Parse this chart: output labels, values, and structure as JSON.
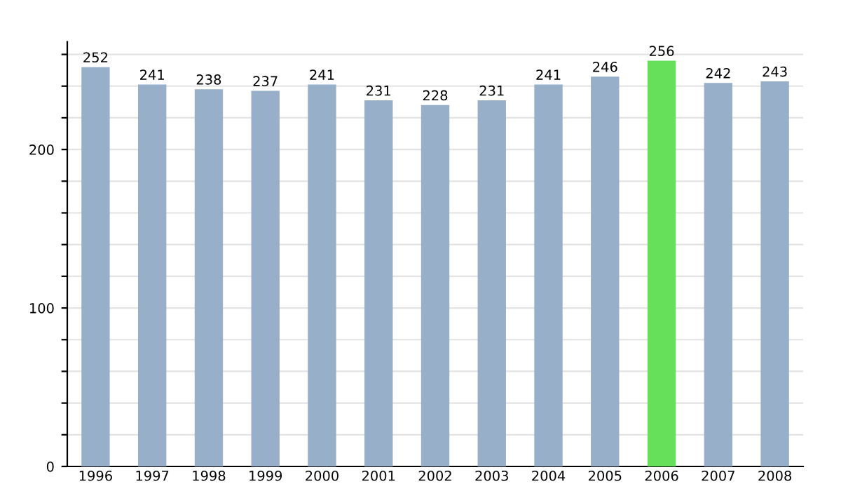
{
  "chart_data": {
    "type": "bar",
    "categories": [
      "1996",
      "1997",
      "1998",
      "1999",
      "2000",
      "2001",
      "2002",
      "2003",
      "2004",
      "2005",
      "2006",
      "2007",
      "2008"
    ],
    "values": [
      252,
      241,
      238,
      237,
      241,
      231,
      228,
      231,
      241,
      246,
      256,
      242,
      243
    ],
    "colors": [
      "#97afc9",
      "#97afc9",
      "#97afc9",
      "#97afc9",
      "#97afc9",
      "#97afc9",
      "#97afc9",
      "#97afc9",
      "#97afc9",
      "#97afc9",
      "#66e05a",
      "#97afc9",
      "#97afc9"
    ],
    "ylim": [
      0,
      268
    ],
    "yticks": [
      0,
      {
        "value": 20,
        "label": null
      },
      {
        "value": 40,
        "label": null
      },
      {
        "value": 60,
        "label": null
      },
      {
        "value": 80,
        "label": null
      },
      100,
      {
        "value": 120,
        "label": null
      },
      {
        "value": 140,
        "label": null
      },
      {
        "value": 160,
        "label": null
      },
      {
        "value": 180,
        "label": null
      },
      200,
      {
        "value": 220,
        "label": null
      },
      {
        "value": 240,
        "label": null
      },
      {
        "value": 260,
        "label": null
      }
    ],
    "grid": "y",
    "data_labels": true
  }
}
